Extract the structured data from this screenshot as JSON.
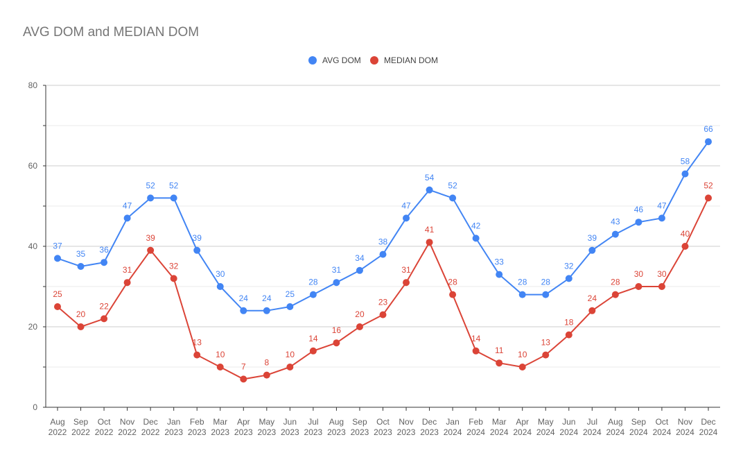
{
  "chart_data": {
    "type": "line",
    "title": "AVG DOM and MEDIAN DOM",
    "xlabel": "",
    "ylabel": "",
    "ylim": [
      0,
      80
    ],
    "yticks": [
      0,
      20,
      40,
      60,
      80
    ],
    "grid": true,
    "legend_position": "top-center",
    "categories": [
      [
        "Aug",
        "2022"
      ],
      [
        "Sep",
        "2022"
      ],
      [
        "Oct",
        "2022"
      ],
      [
        "Nov",
        "2022"
      ],
      [
        "Dec",
        "2022"
      ],
      [
        "Jan",
        "2023"
      ],
      [
        "Feb",
        "2023"
      ],
      [
        "Mar",
        "2023"
      ],
      [
        "Apr",
        "2023"
      ],
      [
        "May",
        "2023"
      ],
      [
        "Jun",
        "2023"
      ],
      [
        "Jul",
        "2023"
      ],
      [
        "Aug",
        "2023"
      ],
      [
        "Sep",
        "2023"
      ],
      [
        "Oct",
        "2023"
      ],
      [
        "Nov",
        "2023"
      ],
      [
        "Dec",
        "2023"
      ],
      [
        "Jan",
        "2024"
      ],
      [
        "Feb",
        "2024"
      ],
      [
        "Mar",
        "2024"
      ],
      [
        "Apr",
        "2024"
      ],
      [
        "May",
        "2024"
      ],
      [
        "Jun",
        "2024"
      ],
      [
        "Jul",
        "2024"
      ],
      [
        "Aug",
        "2024"
      ],
      [
        "Sep",
        "2024"
      ],
      [
        "Oct",
        "2024"
      ],
      [
        "Nov",
        "2024"
      ],
      [
        "Dec",
        "2024"
      ]
    ],
    "series": [
      {
        "name": "AVG DOM",
        "color": "#4285f4",
        "values": [
          37,
          35,
          36,
          47,
          52,
          52,
          39,
          30,
          24,
          24,
          25,
          28,
          31,
          34,
          38,
          47,
          54,
          52,
          42,
          33,
          28,
          28,
          32,
          39,
          43,
          46,
          47,
          58,
          66
        ]
      },
      {
        "name": "MEDIAN DOM",
        "color": "#db4437",
        "values": [
          25,
          20,
          22,
          31,
          39,
          32,
          13,
          10,
          7,
          8,
          10,
          14,
          16,
          20,
          23,
          31,
          41,
          28,
          14,
          11,
          10,
          13,
          18,
          24,
          28,
          30,
          30,
          40,
          52
        ]
      }
    ]
  }
}
